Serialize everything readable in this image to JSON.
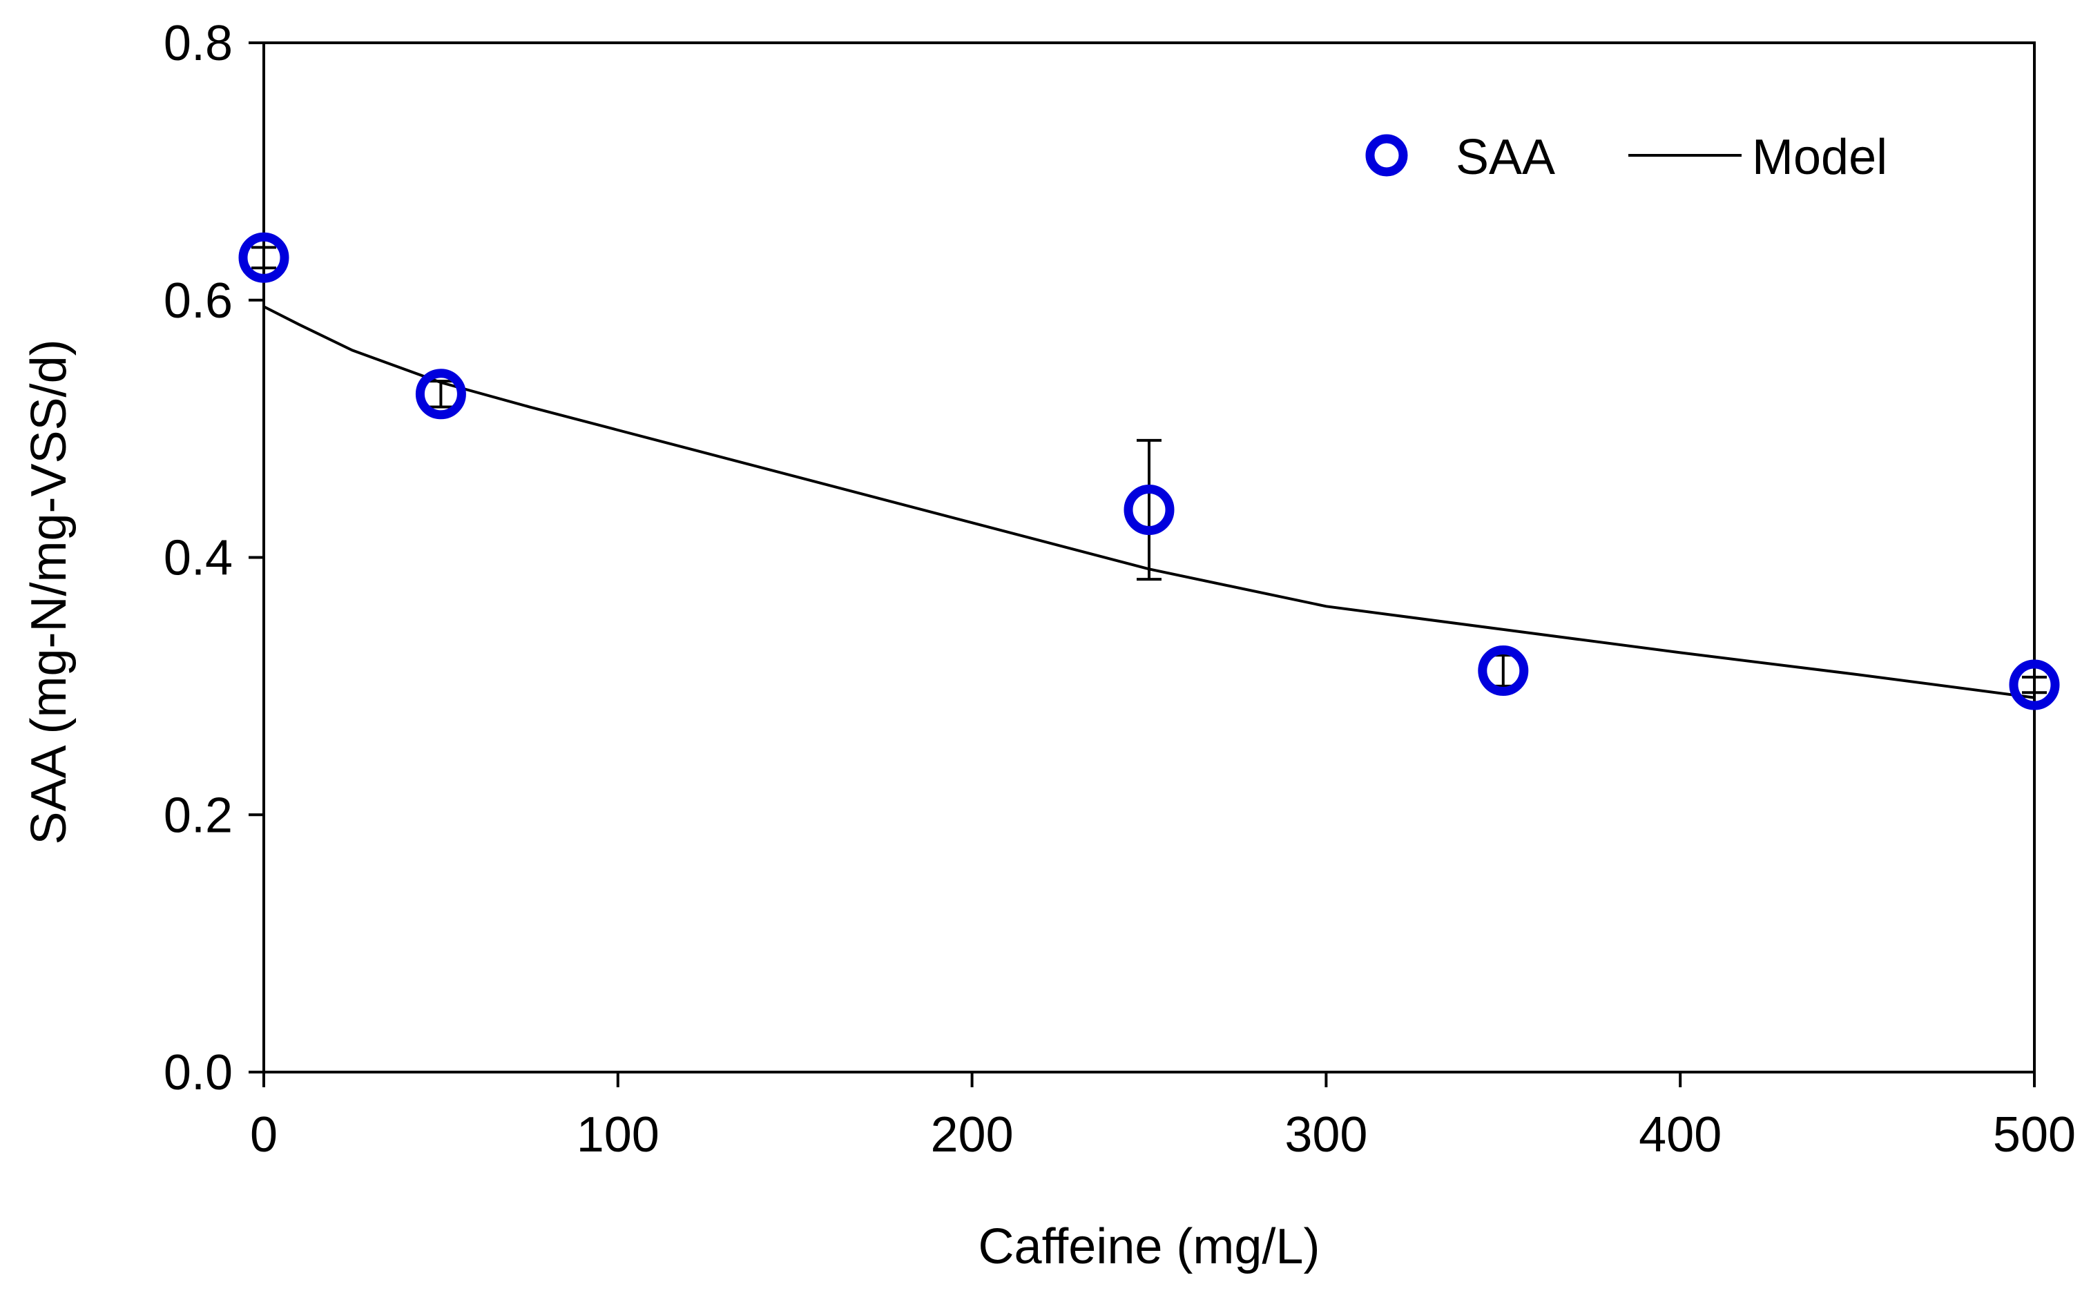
{
  "chart_data": {
    "type": "scatter",
    "title": "",
    "xlabel": "Caffeine (mg/L)",
    "ylabel": "SAA (mg-N/mg-VSS/d)",
    "xlim": [
      0,
      500
    ],
    "ylim": [
      0,
      0.8
    ],
    "xticks": [
      0,
      100,
      200,
      300,
      400,
      500
    ],
    "yticks": [
      0.0,
      0.2,
      0.4,
      0.6,
      0.8
    ],
    "xtick_labels": [
      "0",
      "100",
      "200",
      "300",
      "400",
      "500"
    ],
    "ytick_labels": [
      "0.0",
      "0.2",
      "0.4",
      "0.6",
      "0.8"
    ],
    "grid": false,
    "legend_position": "top-right",
    "series": [
      {
        "name": "SAA",
        "kind": "scatter",
        "color": "#0000dd",
        "x": [
          0,
          50,
          250,
          350,
          500
        ],
        "y": [
          0.633,
          0.527,
          0.437,
          0.312,
          0.301
        ],
        "error": [
          0.008,
          0.01,
          0.054,
          0.012,
          0.006
        ]
      },
      {
        "name": "Model",
        "kind": "line",
        "color": "#000000",
        "x": [
          0,
          10,
          25,
          50,
          75,
          100,
          150,
          200,
          250,
          300,
          350,
          400,
          450,
          500
        ],
        "y": [
          0.595,
          0.581,
          0.561,
          0.536,
          0.517,
          0.499,
          0.463,
          0.427,
          0.391,
          0.362,
          0.344,
          0.326,
          0.309,
          0.291
        ]
      }
    ]
  }
}
